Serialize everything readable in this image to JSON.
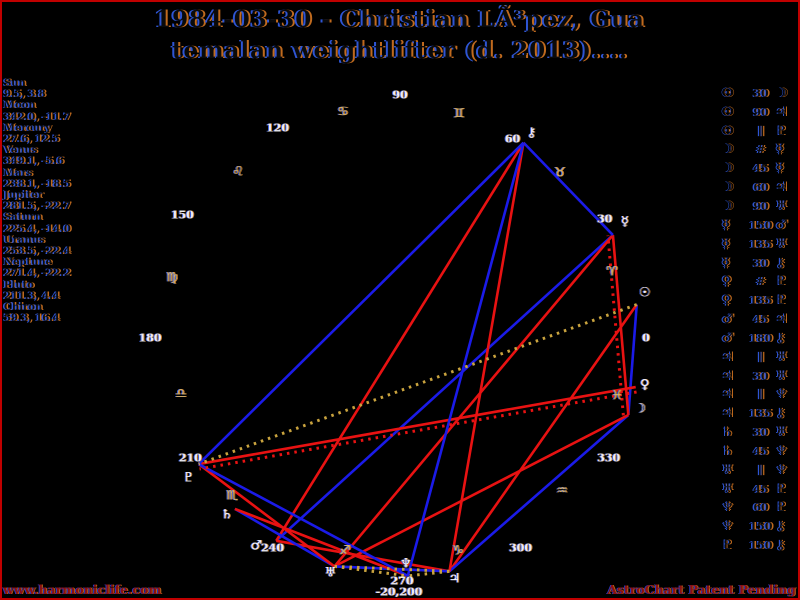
{
  "title": {
    "line1": "1984-03-30 - Christian LÃ³pez, Gua",
    "line2": "temalan weightlifter (d. 2013)...."
  },
  "footer": {
    "url": "www.harmoniclife.com",
    "patent": "AstroChart Patent Pending"
  },
  "colors": {
    "background": "#000000",
    "border": "#c00000",
    "hard_aspect": "#e81212",
    "soft_aspect": "#1b1be8",
    "parallel": "#c9a33e",
    "contraparallel": "#e81212",
    "tick_text": "#ececec",
    "zodiac_glyph": "#d8b264",
    "footer_text": "#8b1010",
    "fringe_blue": "#2e55d4",
    "fringe_orange": "#c06a1e"
  },
  "chart_data": {
    "type": "scatter",
    "subtype": "astrological-ecliptic-wheel with aspect lines",
    "planets": [
      {
        "name": "Sun",
        "glyph": "☉",
        "longitude": 9.5,
        "declination": 3.8
      },
      {
        "name": "Moon",
        "glyph": "☽",
        "longitude": 342.0,
        "declination": -11.7
      },
      {
        "name": "Mercury",
        "glyph": "☿",
        "longitude": 27.6,
        "declination": 12.5
      },
      {
        "name": "Venus",
        "glyph": "♀",
        "longitude": 349.1,
        "declination": -5.6
      },
      {
        "name": "Mars",
        "glyph": "♂",
        "longitude": 238.1,
        "declination": -18.5
      },
      {
        "name": "Jupiter",
        "glyph": "♃",
        "longitude": 281.5,
        "declination": -22.7
      },
      {
        "name": "Saturn",
        "glyph": "♄",
        "longitude": 225.4,
        "declination": -14.0
      },
      {
        "name": "Uranus",
        "glyph": "♅",
        "longitude": 253.5,
        "declination": -22.4
      },
      {
        "name": "Neptune",
        "glyph": "♆",
        "longitude": 271.4,
        "declination": -22.2
      },
      {
        "name": "Pluto",
        "glyph": "♇",
        "longitude": 211.3,
        "declination": 4.4
      },
      {
        "name": "Chiron",
        "glyph": "⚷",
        "longitude": 59.3,
        "declination": 16.4
      }
    ],
    "aspects": [
      {
        "p1": "Sun",
        "aspect": "30",
        "p2": "Moon",
        "kind": "soft"
      },
      {
        "p1": "Sun",
        "aspect": "90",
        "p2": "Jupiter",
        "kind": "hard"
      },
      {
        "p1": "Sun",
        "aspect": "∥",
        "p2": "Pluto",
        "kind": "parallel"
      },
      {
        "p1": "Moon",
        "aspect": "#",
        "p2": "Mercury",
        "kind": "contraparallel"
      },
      {
        "p1": "Moon",
        "aspect": "45",
        "p2": "Mercury",
        "kind": "hard"
      },
      {
        "p1": "Moon",
        "aspect": "60",
        "p2": "Jupiter",
        "kind": "soft"
      },
      {
        "p1": "Moon",
        "aspect": "90",
        "p2": "Uranus",
        "kind": "hard"
      },
      {
        "p1": "Mercury",
        "aspect": "150",
        "p2": "Mars",
        "kind": "soft"
      },
      {
        "p1": "Mercury",
        "aspect": "135",
        "p2": "Uranus",
        "kind": "hard"
      },
      {
        "p1": "Mercury",
        "aspect": "30",
        "p2": "Chiron",
        "kind": "soft"
      },
      {
        "p1": "Venus",
        "aspect": "#",
        "p2": "Pluto",
        "kind": "contraparallel"
      },
      {
        "p1": "Venus",
        "aspect": "135",
        "p2": "Pluto",
        "kind": "hard"
      },
      {
        "p1": "Mars",
        "aspect": "45",
        "p2": "Jupiter",
        "kind": "hard"
      },
      {
        "p1": "Mars",
        "aspect": "180",
        "p2": "Chiron",
        "kind": "hard"
      },
      {
        "p1": "Jupiter",
        "aspect": "∥",
        "p2": "Uranus",
        "kind": "parallel"
      },
      {
        "p1": "Jupiter",
        "aspect": "30",
        "p2": "Uranus",
        "kind": "soft"
      },
      {
        "p1": "Jupiter",
        "aspect": "∥",
        "p2": "Neptune",
        "kind": "parallel"
      },
      {
        "p1": "Jupiter",
        "aspect": "135",
        "p2": "Chiron",
        "kind": "hard"
      },
      {
        "p1": "Saturn",
        "aspect": "30",
        "p2": "Uranus",
        "kind": "soft"
      },
      {
        "p1": "Saturn",
        "aspect": "45",
        "p2": "Neptune",
        "kind": "hard"
      },
      {
        "p1": "Uranus",
        "aspect": "∥",
        "p2": "Neptune",
        "kind": "parallel"
      },
      {
        "p1": "Uranus",
        "aspect": "45",
        "p2": "Pluto",
        "kind": "hard"
      },
      {
        "p1": "Neptune",
        "aspect": "60",
        "p2": "Pluto",
        "kind": "soft"
      },
      {
        "p1": "Neptune",
        "aspect": "150",
        "p2": "Chiron",
        "kind": "soft"
      },
      {
        "p1": "Pluto",
        "aspect": "150",
        "p2": "Chiron",
        "kind": "soft"
      }
    ],
    "longitude_ticks": [
      "0",
      "30",
      "60",
      "90",
      "120",
      "150",
      "180",
      "210",
      "240",
      "270",
      "300",
      "330"
    ],
    "zodiac_signs": [
      {
        "name": "aries",
        "glyph": "♈"
      },
      {
        "name": "taurus",
        "glyph": "♉"
      },
      {
        "name": "gemini",
        "glyph": "♊"
      },
      {
        "name": "cancer",
        "glyph": "♋"
      },
      {
        "name": "leo",
        "glyph": "♌"
      },
      {
        "name": "virgo",
        "glyph": "♍"
      },
      {
        "name": "libra",
        "glyph": "♎"
      },
      {
        "name": "scorpio",
        "glyph": "♏"
      },
      {
        "name": "sagittarius",
        "glyph": "♐"
      },
      {
        "name": "capricorn",
        "glyph": "♑"
      },
      {
        "name": "aquarius",
        "glyph": "♒"
      },
      {
        "name": "pisces",
        "glyph": "♓"
      }
    ],
    "annotations": [
      "-20,200"
    ]
  }
}
